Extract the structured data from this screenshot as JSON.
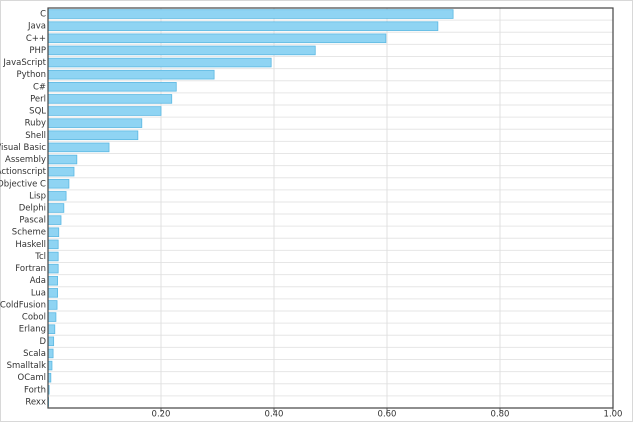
{
  "chart_data": {
    "type": "bar",
    "orientation": "horizontal",
    "categories": [
      "C",
      "Java",
      "C++",
      "PHP",
      "JavaScript",
      "Python",
      "C#",
      "Perl",
      "SQL",
      "Ruby",
      "Shell",
      "Visual Basic",
      "Assembly",
      "Actionscript",
      "Objective C",
      "Lisp",
      "Delphi",
      "Pascal",
      "Scheme",
      "Haskell",
      "Tcl",
      "Fortran",
      "Ada",
      "Lua",
      "ColdFusion",
      "Cobol",
      "Erlang",
      "D",
      "Scala",
      "Smalltalk",
      "OCaml",
      "Forth",
      "Rexx"
    ],
    "values": [
      0.717,
      0.69,
      0.598,
      0.473,
      0.395,
      0.294,
      0.227,
      0.219,
      0.2,
      0.166,
      0.159,
      0.108,
      0.051,
      0.046,
      0.037,
      0.032,
      0.028,
      0.023,
      0.019,
      0.018,
      0.018,
      0.018,
      0.017,
      0.017,
      0.016,
      0.014,
      0.012,
      0.01,
      0.009,
      0.007,
      0.005,
      0.002,
      0.001
    ],
    "color": "#8fd4f3",
    "xlim": [
      0,
      1
    ],
    "xticks": [
      {
        "value": 0.2,
        "label": "0.20"
      },
      {
        "value": 0.4,
        "label": "0.40"
      },
      {
        "value": 0.6,
        "label": "0.60"
      },
      {
        "value": 0.8,
        "label": "0.80"
      },
      {
        "value": 1,
        "label": "1.00"
      }
    ],
    "grid": true
  }
}
